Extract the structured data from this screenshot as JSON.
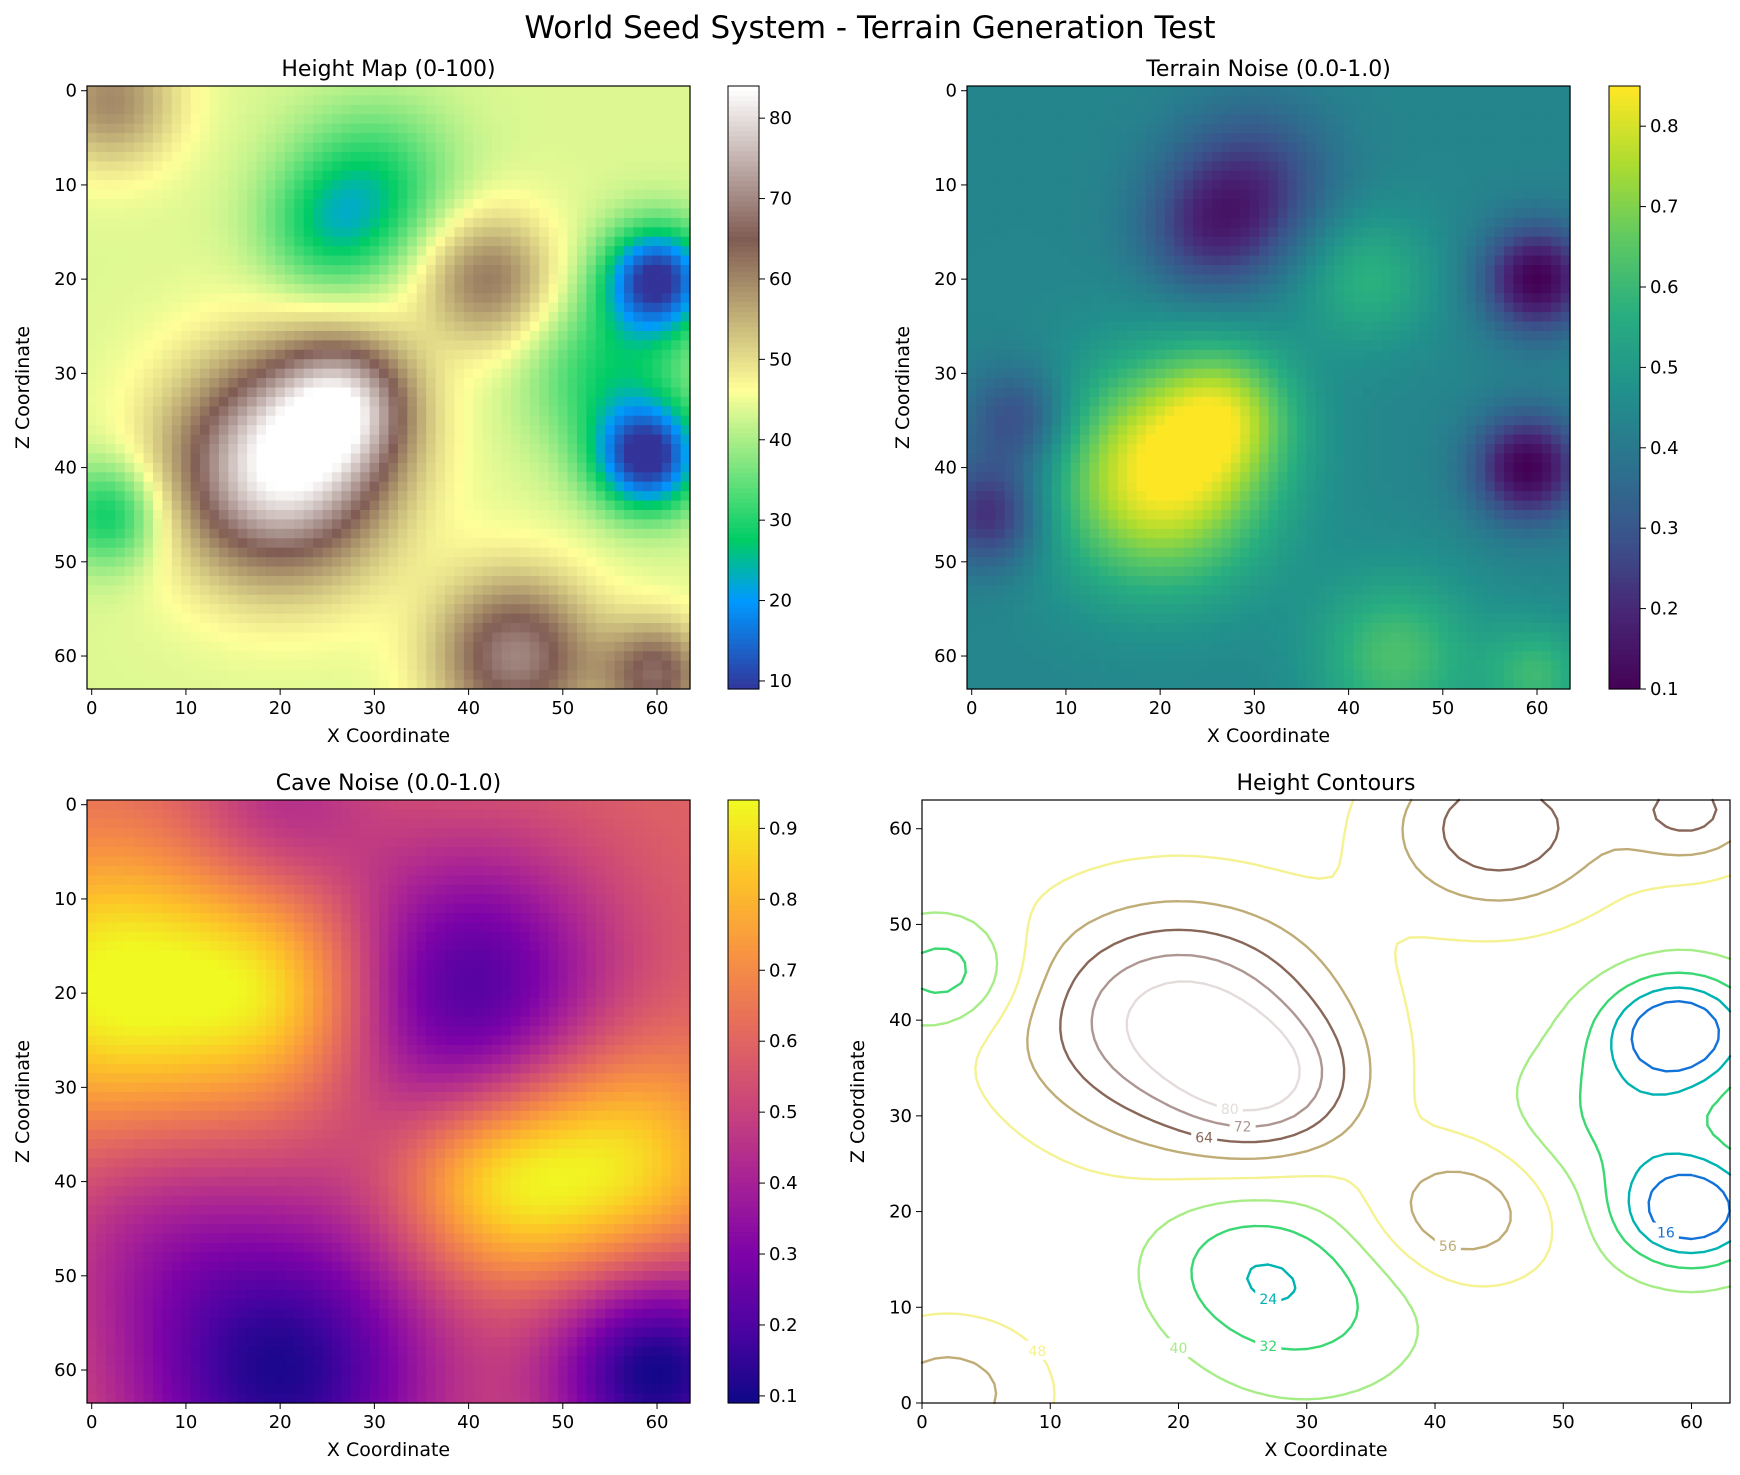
{
  "suptitle": "World Seed System - Terrain Generation Test",
  "chart_data": [
    {
      "type": "heatmap",
      "id": "height",
      "title": "Height Map (0-100)",
      "xlabel": "X Coordinate",
      "ylabel": "Z Coordinate",
      "grid_size": 64,
      "x_ticks": [
        0,
        10,
        20,
        30,
        40,
        50,
        60
      ],
      "y_ticks": [
        0,
        10,
        20,
        30,
        40,
        50,
        60
      ],
      "colormap": "terrain",
      "colorbar_range": [
        9,
        84
      ],
      "colorbar_ticks": [
        10,
        20,
        30,
        40,
        50,
        60,
        70,
        80
      ],
      "base_level": 44,
      "features": [
        {
          "x": 20,
          "z": 40,
          "height": 84,
          "radius": 8
        },
        {
          "x": 27,
          "z": 33,
          "height": 68,
          "radius": 5
        },
        {
          "x": 42,
          "z": 20,
          "height": 62,
          "radius": 5
        },
        {
          "x": 45,
          "z": 60,
          "height": 70,
          "radius": 6
        },
        {
          "x": 60,
          "z": 62,
          "height": 66,
          "radius": 4
        },
        {
          "x": 2,
          "z": 1,
          "height": 60,
          "radius": 5
        },
        {
          "x": 60,
          "z": 20,
          "height": 9,
          "radius": 4
        },
        {
          "x": 59,
          "z": 39,
          "height": 9,
          "radius": 4
        },
        {
          "x": 30,
          "z": 10,
          "height": 30,
          "radius": 6
        },
        {
          "x": 25,
          "z": 15,
          "height": 32,
          "radius": 5
        },
        {
          "x": 2,
          "z": 45,
          "height": 27,
          "radius": 4
        },
        {
          "x": 55,
          "z": 30,
          "height": 30,
          "radius": 6
        }
      ]
    },
    {
      "type": "heatmap",
      "id": "terrain",
      "title": "Terrain Noise (0.0-1.0)",
      "xlabel": "X Coordinate",
      "ylabel": "Z Coordinate",
      "grid_size": 64,
      "x_ticks": [
        0,
        10,
        20,
        30,
        40,
        50,
        60
      ],
      "y_ticks": [
        0,
        10,
        20,
        30,
        40,
        50,
        60
      ],
      "colormap": "viridis",
      "colorbar_range": [
        0.1,
        0.85
      ],
      "colorbar_ticks": [
        0.1,
        0.2,
        0.3,
        0.4,
        0.5,
        0.6,
        0.7,
        0.8
      ],
      "base_level": 0.44,
      "features": [
        {
          "x": 20,
          "z": 41,
          "height": 0.85,
          "radius": 8
        },
        {
          "x": 27,
          "z": 34,
          "height": 0.66,
          "radius": 5
        },
        {
          "x": 42,
          "z": 20,
          "height": 0.58,
          "radius": 5
        },
        {
          "x": 45,
          "z": 60,
          "height": 0.63,
          "radius": 6
        },
        {
          "x": 60,
          "z": 62,
          "height": 0.6,
          "radius": 4
        },
        {
          "x": 60,
          "z": 20,
          "height": 0.1,
          "radius": 4
        },
        {
          "x": 59,
          "z": 40,
          "height": 0.1,
          "radius": 4
        },
        {
          "x": 30,
          "z": 10,
          "height": 0.25,
          "radius": 6
        },
        {
          "x": 25,
          "z": 15,
          "height": 0.27,
          "radius": 5
        },
        {
          "x": 2,
          "z": 45,
          "height": 0.2,
          "radius": 4
        },
        {
          "x": 5,
          "z": 35,
          "height": 0.25,
          "radius": 4
        }
      ]
    },
    {
      "type": "heatmap",
      "id": "cave",
      "title": "Cave Noise (0.0-1.0)",
      "xlabel": "X Coordinate",
      "ylabel": "Z Coordinate",
      "grid_size": 64,
      "x_ticks": [
        0,
        10,
        20,
        30,
        40,
        50,
        60
      ],
      "y_ticks": [
        0,
        10,
        20,
        30,
        40,
        50,
        60
      ],
      "colormap": "plasma",
      "colorbar_range": [
        0.09,
        0.94
      ],
      "colorbar_ticks": [
        0.1,
        0.2,
        0.3,
        0.4,
        0.5,
        0.6,
        0.7,
        0.8,
        0.9
      ],
      "base_level": 0.6,
      "features": [
        {
          "x": 2,
          "z": 19,
          "height": 0.94,
          "radius": 10
        },
        {
          "x": 20,
          "z": 20,
          "height": 0.88,
          "radius": 8
        },
        {
          "x": 55,
          "z": 38,
          "height": 0.92,
          "radius": 9
        },
        {
          "x": 42,
          "z": 40,
          "height": 0.85,
          "radius": 7
        },
        {
          "x": 40,
          "z": 20,
          "height": 0.2,
          "radius": 11
        },
        {
          "x": 20,
          "z": 60,
          "height": 0.12,
          "radius": 12
        },
        {
          "x": 60,
          "z": 60,
          "height": 0.09,
          "radius": 8
        },
        {
          "x": 20,
          "z": 0,
          "height": 0.45,
          "radius": 7
        },
        {
          "x": 5,
          "z": 45,
          "height": 0.5,
          "radius": 8
        }
      ]
    },
    {
      "type": "contour",
      "id": "contours",
      "title": "Height Contours",
      "xlabel": "X Coordinate",
      "ylabel": "Z Coordinate",
      "x_range": [
        0,
        63
      ],
      "y_range": [
        0,
        63
      ],
      "x_ticks": [
        0,
        10,
        20,
        30,
        40,
        50,
        60
      ],
      "y_ticks": [
        0,
        10,
        20,
        30,
        40,
        50,
        60
      ],
      "colormap": "terrain",
      "levels": [
        16,
        24,
        32,
        40,
        48,
        56,
        64,
        72,
        80
      ],
      "source": "height",
      "z_axis_inverted": false
    }
  ]
}
